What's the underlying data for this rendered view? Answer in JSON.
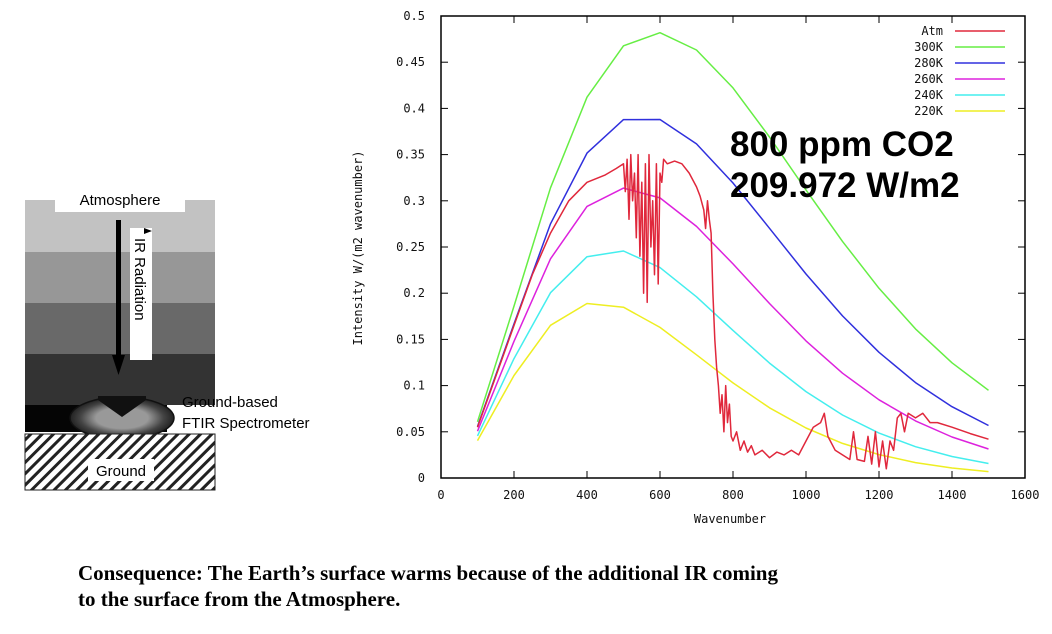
{
  "diagram": {
    "atmosphere_label": "Atmosphere",
    "radiation_label": "IR Radiation",
    "instrument_label_line1": "Ground-based",
    "instrument_label_line2": "FTIR Spectrometer",
    "ground_label": "Ground"
  },
  "annotation": {
    "line1": "800 ppm CO2",
    "line2": "209.972 W/m2"
  },
  "caption": {
    "line1": "Consequence:  The Earth’s surface warms because of the additional IR coming",
    "line2": "to the surface from the Atmosphere."
  },
  "chart_data": {
    "type": "line",
    "title": "",
    "xlabel": "Wavenumber",
    "ylabel": "Intensity W/(m2 wavenumber)",
    "xlim": [
      0,
      1600
    ],
    "ylim": [
      0,
      0.5
    ],
    "xticks": [
      "0",
      "200",
      "400",
      "600",
      "800",
      "1000",
      "1200",
      "1400",
      "1600"
    ],
    "yticks": [
      "0",
      "0.05",
      "0.1",
      "0.15",
      "0.2",
      "0.25",
      "0.3",
      "0.35",
      "0.4",
      "0.45",
      "0.5"
    ],
    "grid": false,
    "legend_position": "top-right",
    "x": [
      100,
      200,
      300,
      400,
      500,
      600,
      700,
      800,
      900,
      1000,
      1100,
      1200,
      1300,
      1400,
      1500
    ],
    "series": [
      {
        "name": "Atm",
        "color": "#e0283c",
        "points": [
          [
            100,
            0.055
          ],
          [
            150,
            0.11
          ],
          [
            200,
            0.165
          ],
          [
            250,
            0.22
          ],
          [
            300,
            0.265
          ],
          [
            350,
            0.3
          ],
          [
            400,
            0.32
          ],
          [
            450,
            0.328
          ],
          [
            480,
            0.335
          ],
          [
            500,
            0.34
          ],
          [
            505,
            0.31
          ],
          [
            510,
            0.345
          ],
          [
            515,
            0.28
          ],
          [
            520,
            0.35
          ],
          [
            525,
            0.3
          ],
          [
            530,
            0.33
          ],
          [
            535,
            0.26
          ],
          [
            540,
            0.35
          ],
          [
            545,
            0.24
          ],
          [
            550,
            0.32
          ],
          [
            555,
            0.2
          ],
          [
            560,
            0.34
          ],
          [
            565,
            0.19
          ],
          [
            570,
            0.35
          ],
          [
            575,
            0.25
          ],
          [
            580,
            0.3
          ],
          [
            585,
            0.22
          ],
          [
            590,
            0.34
          ],
          [
            595,
            0.21
          ],
          [
            600,
            0.33
          ],
          [
            605,
            0.32
          ],
          [
            610,
            0.345
          ],
          [
            620,
            0.34
          ],
          [
            640,
            0.343
          ],
          [
            660,
            0.34
          ],
          [
            680,
            0.33
          ],
          [
            700,
            0.315
          ],
          [
            710,
            0.305
          ],
          [
            720,
            0.29
          ],
          [
            725,
            0.27
          ],
          [
            730,
            0.3
          ],
          [
            735,
            0.28
          ],
          [
            740,
            0.265
          ],
          [
            745,
            0.2
          ],
          [
            750,
            0.15
          ],
          [
            755,
            0.12
          ],
          [
            760,
            0.1
          ],
          [
            765,
            0.07
          ],
          [
            770,
            0.09
          ],
          [
            775,
            0.05
          ],
          [
            780,
            0.1
          ],
          [
            785,
            0.06
          ],
          [
            790,
            0.08
          ],
          [
            795,
            0.045
          ],
          [
            800,
            0.04
          ],
          [
            810,
            0.05
          ],
          [
            820,
            0.03
          ],
          [
            830,
            0.04
          ],
          [
            840,
            0.028
          ],
          [
            850,
            0.035
          ],
          [
            860,
            0.025
          ],
          [
            880,
            0.03
          ],
          [
            900,
            0.022
          ],
          [
            920,
            0.028
          ],
          [
            940,
            0.025
          ],
          [
            960,
            0.03
          ],
          [
            980,
            0.025
          ],
          [
            1000,
            0.04
          ],
          [
            1020,
            0.055
          ],
          [
            1040,
            0.06
          ],
          [
            1050,
            0.07
          ],
          [
            1060,
            0.045
          ],
          [
            1080,
            0.03
          ],
          [
            1100,
            0.025
          ],
          [
            1120,
            0.02
          ],
          [
            1130,
            0.05
          ],
          [
            1140,
            0.02
          ],
          [
            1160,
            0.018
          ],
          [
            1170,
            0.045
          ],
          [
            1180,
            0.015
          ],
          [
            1190,
            0.05
          ],
          [
            1200,
            0.012
          ],
          [
            1210,
            0.04
          ],
          [
            1220,
            0.01
          ],
          [
            1230,
            0.04
          ],
          [
            1240,
            0.03
          ],
          [
            1250,
            0.065
          ],
          [
            1260,
            0.07
          ],
          [
            1270,
            0.05
          ],
          [
            1280,
            0.07
          ],
          [
            1300,
            0.065
          ],
          [
            1320,
            0.07
          ],
          [
            1340,
            0.06
          ],
          [
            1360,
            0.06
          ],
          [
            1400,
            0.055
          ],
          [
            1450,
            0.048
          ],
          [
            1500,
            0.042
          ]
        ]
      },
      {
        "name": "300K",
        "color": "#66ee44",
        "values": [
          0.0608,
          0.186,
          0.3141,
          0.4121,
          0.4677,
          0.4819,
          0.4632,
          0.4222,
          0.369,
          0.3118,
          0.2561,
          0.2053,
          0.1614,
          0.1247,
          0.0949
        ]
      },
      {
        "name": "280K",
        "color": "#3030dd",
        "values": [
          0.0557,
          0.1668,
          0.2751,
          0.3516,
          0.3879,
          0.388,
          0.3616,
          0.3193,
          0.2702,
          0.2208,
          0.1754,
          0.136,
          0.1033,
          0.0772,
          0.0568
        ]
      },
      {
        "name": "260K",
        "color": "#dd22dd",
        "values": [
          0.0506,
          0.1479,
          0.2372,
          0.2939,
          0.3137,
          0.3031,
          0.2723,
          0.2317,
          0.1888,
          0.1484,
          0.1134,
          0.0846,
          0.0618,
          0.0444,
          0.0314
        ]
      },
      {
        "name": "240K",
        "color": "#44eeee",
        "values": [
          0.0456,
          0.1292,
          0.2005,
          0.2395,
          0.2457,
          0.2277,
          0.1961,
          0.1597,
          0.1243,
          0.0935,
          0.0682,
          0.0486,
          0.0339,
          0.0233,
          0.0157
        ]
      },
      {
        "name": "220K",
        "color": "#eeee22",
        "values": [
          0.0405,
          0.1109,
          0.1653,
          0.1889,
          0.1848,
          0.163,
          0.1333,
          0.1029,
          0.076,
          0.0541,
          0.0374,
          0.0253,
          0.0167,
          0.0108,
          0.0069
        ]
      }
    ]
  }
}
